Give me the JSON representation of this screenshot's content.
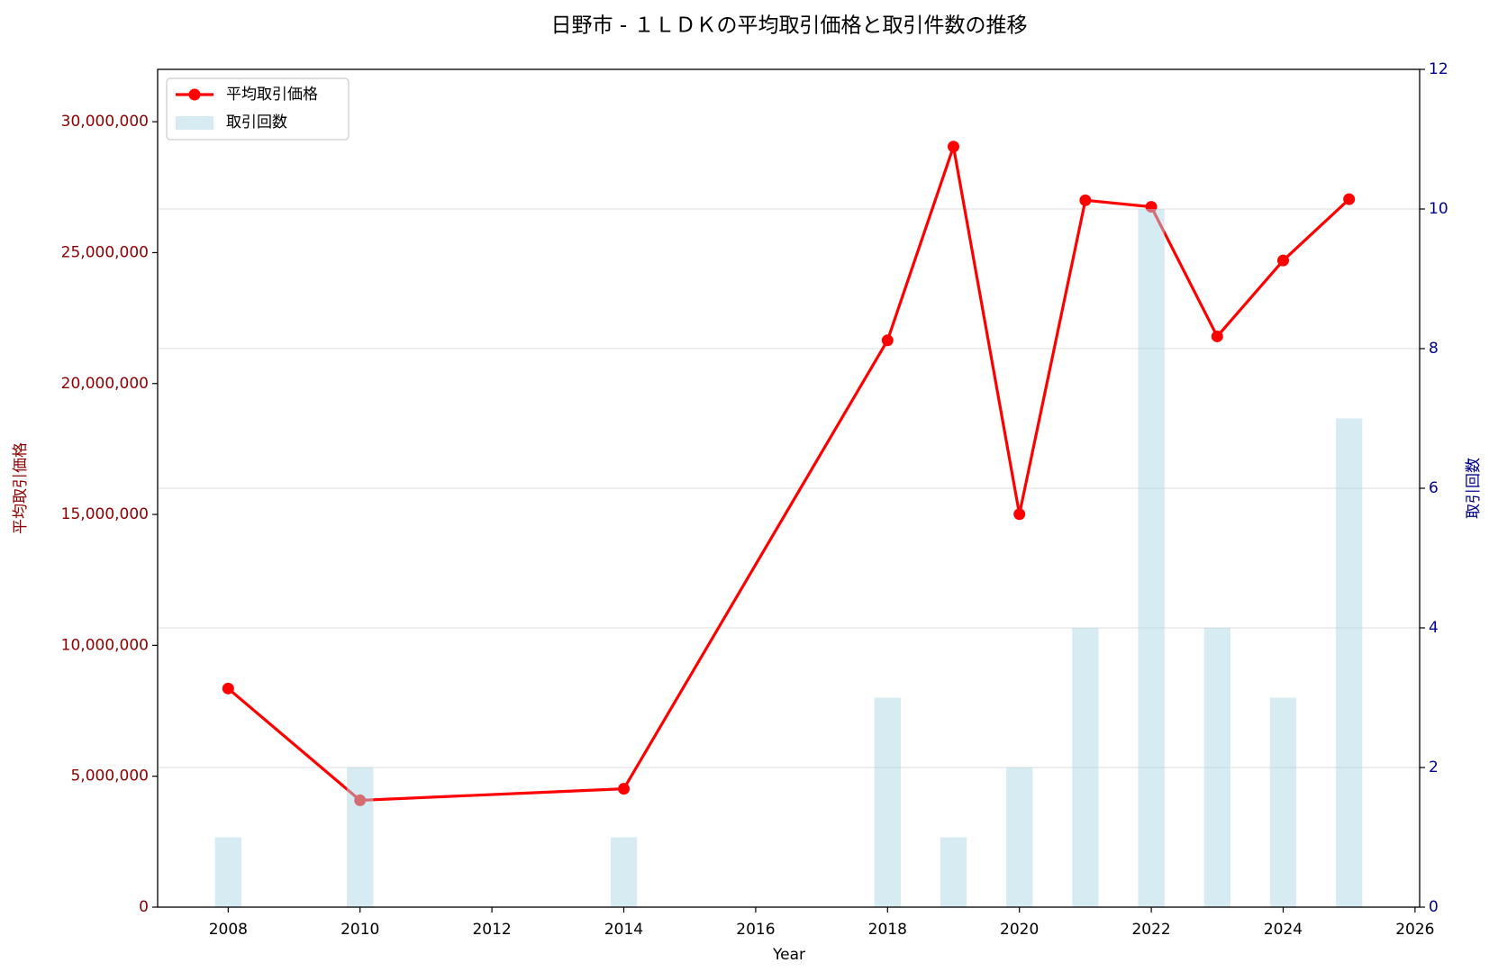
{
  "chart_data": {
    "type": "combo",
    "title": "日野市 - １ＬＤＫの平均取引価格と取引件数の推移",
    "xlabel": "Year",
    "ylabel": "平均取引価格",
    "y2label": "取引回数",
    "x": [
      2008,
      2010,
      2014,
      2018,
      2019,
      2020,
      2021,
      2022,
      2023,
      2024,
      2025
    ],
    "series": [
      {
        "name": "平均取引価格",
        "type": "line",
        "color": "#ff0000",
        "values": [
          8350000,
          4080000,
          4520000,
          21650000,
          29050000,
          15010000,
          27000000,
          26750000,
          21800000,
          24700000,
          27040000
        ]
      },
      {
        "name": "取引回数",
        "type": "bar",
        "axis": "y2",
        "color": "#add8e6",
        "alpha": 0.5,
        "values": [
          1,
          2,
          1,
          3,
          1,
          2,
          4,
          10,
          4,
          3,
          7
        ]
      }
    ],
    "xlim": [
      2006.93,
      2026.07
    ],
    "ylim": [
      0,
      32000000
    ],
    "y2lim": [
      0,
      12
    ],
    "xticks": [
      2008,
      2010,
      2012,
      2014,
      2016,
      2018,
      2020,
      2022,
      2024,
      2026
    ],
    "yticks": [
      0,
      {
        "value": 5000000,
        "label": "5,000,000"
      },
      {
        "value": 10000000,
        "label": "10,000,000"
      },
      {
        "value": 15000000,
        "label": "15,000,000"
      },
      {
        "value": 20000000,
        "label": "20,000,000"
      },
      {
        "value": 25000000,
        "label": "25,000,000"
      },
      {
        "value": 30000000,
        "label": "30,000,000"
      }
    ],
    "y2ticks": [
      0,
      2,
      4,
      6,
      8,
      10,
      12
    ],
    "ycolor": "#8b0000",
    "y2color": "#00008b",
    "grid": "y2",
    "legend": "upper left"
  }
}
